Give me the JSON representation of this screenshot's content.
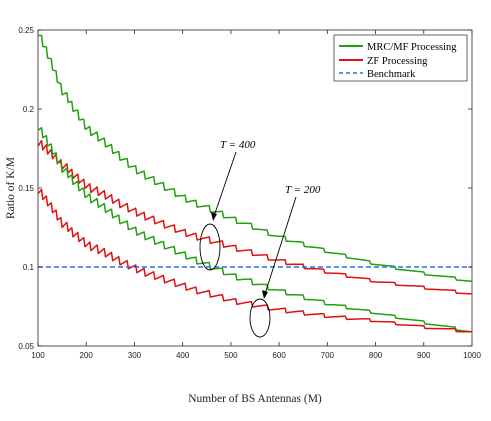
{
  "chart_data": {
    "type": "line",
    "xlabel": "Number of BS Antennas (M)",
    "ylabel": "Ratio of K/M",
    "xlim": [
      100,
      1000
    ],
    "ylim": [
      0.05,
      0.25
    ],
    "xticks": [
      "100",
      "200",
      "300",
      "400",
      "500",
      "600",
      "700",
      "800",
      "900",
      "1000"
    ],
    "yticks": [
      "0.05",
      "0.1",
      "0.15",
      "0.2",
      "0.25"
    ],
    "grid": false,
    "legend_position": "top-right",
    "series": [
      {
        "name": "MRC/MF Processing",
        "group": "T = 400",
        "color": "#22a00e",
        "x": [
          100,
          150,
          200,
          300,
          400,
          500,
          600,
          700,
          800,
          900,
          1000
        ],
        "y": [
          0.25,
          0.212,
          0.189,
          0.162,
          0.144,
          0.131,
          0.119,
          0.11,
          0.102,
          0.096,
          0.091
        ]
      },
      {
        "name": "ZF Processing",
        "group": "T = 400",
        "color": "#e01010",
        "x": [
          100,
          150,
          200,
          300,
          400,
          500,
          600,
          700,
          800,
          900,
          1000
        ],
        "y": [
          0.18,
          0.165,
          0.152,
          0.135,
          0.122,
          0.113,
          0.104,
          0.097,
          0.091,
          0.087,
          0.083
        ]
      },
      {
        "name": "MRC/MF Processing",
        "group": "T = 200",
        "color": "#22a00e",
        "x": [
          100,
          150,
          200,
          300,
          400,
          500,
          600,
          700,
          800,
          900,
          1000
        ],
        "y": [
          0.19,
          0.163,
          0.146,
          0.123,
          0.108,
          0.095,
          0.085,
          0.077,
          0.071,
          0.065,
          0.059
        ]
      },
      {
        "name": "ZF Processing",
        "group": "T = 200",
        "color": "#e01010",
        "x": [
          100,
          150,
          200,
          300,
          400,
          500,
          600,
          700,
          800,
          900,
          1000
        ],
        "y": [
          0.15,
          0.128,
          0.115,
          0.099,
          0.088,
          0.079,
          0.073,
          0.069,
          0.066,
          0.062,
          0.059
        ]
      },
      {
        "name": "Benchmark",
        "color": "#2f6fe0",
        "dashed": true,
        "x": [
          100,
          1000
        ],
        "y": [
          0.1,
          0.1
        ]
      }
    ],
    "legend": [
      "MRC/MF Processing",
      "ZF Processing",
      "Benchmark"
    ],
    "annotations": [
      {
        "text": "T = 400",
        "target": "T = 400 curves near M ≈ 460"
      },
      {
        "text": "T = 200",
        "target": "T = 200 curves near M ≈ 560"
      }
    ]
  },
  "colors": {
    "mrc": "#22a00e",
    "zf": "#e01010",
    "benchmark": "#2f6fe0"
  }
}
